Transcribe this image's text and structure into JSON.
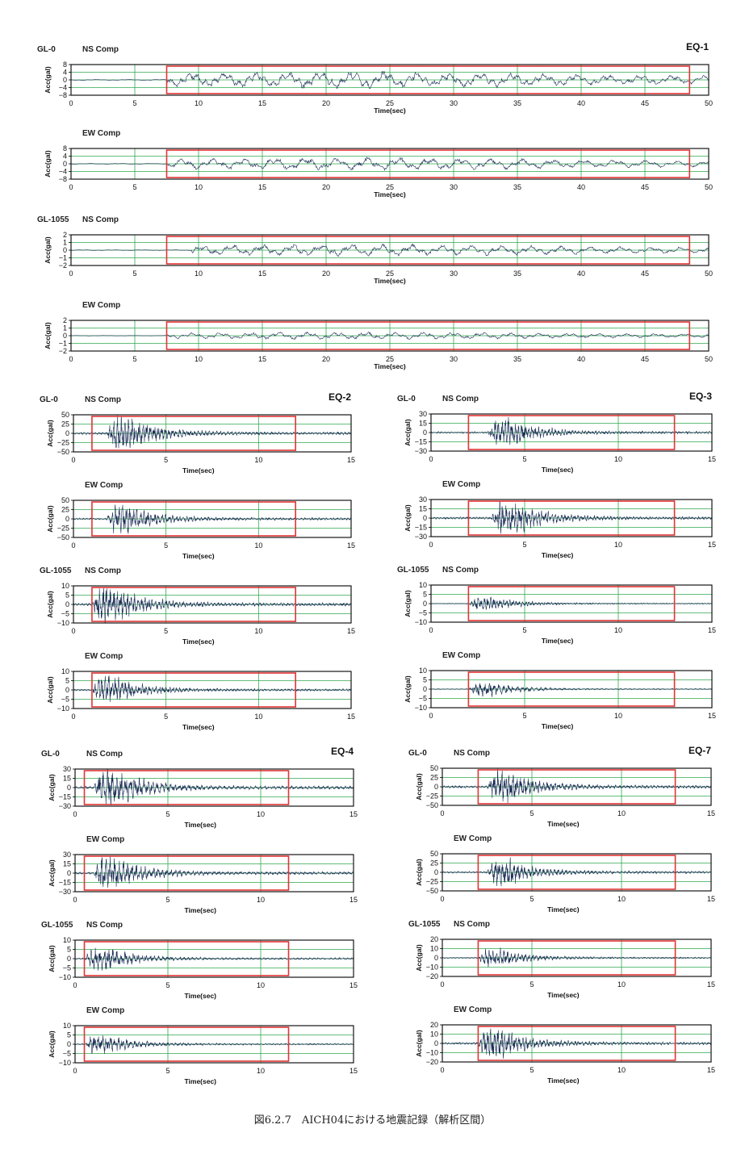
{
  "caption": "図6.2.7　AICH04における地震記録（解析区間）",
  "colors": {
    "grid": "#2fa84f",
    "trace": "#1b2e55",
    "window": "#e03535",
    "frame": "#000000"
  },
  "chart_data": [
    {
      "type": "line",
      "event": "EQ-1",
      "location": "GL-0",
      "component": "NS Comp",
      "xlabel": "Time(sec)",
      "ylabel": "Acc(gal)",
      "xlim": [
        0,
        50
      ],
      "xticks": [
        0,
        5,
        10,
        15,
        20,
        25,
        30,
        35,
        40,
        45,
        50
      ],
      "ylim": [
        -8,
        8
      ],
      "yticks": [
        -8,
        -4,
        0,
        4,
        8
      ],
      "ytick_labels": [
        "−8",
        "−4",
        "0",
        "4",
        "8"
      ],
      "analysis_window": [
        7.5,
        48.5
      ],
      "peak_abs": 4.6,
      "onset": 7.5,
      "amp_character": "longperiod"
    },
    {
      "type": "line",
      "component": "EW Comp",
      "xlabel": "Time(sec)",
      "ylabel": "Acc(gal)",
      "xlim": [
        0,
        50
      ],
      "xticks": [
        0,
        5,
        10,
        15,
        20,
        25,
        30,
        35,
        40,
        45,
        50
      ],
      "ylim": [
        -8,
        8
      ],
      "yticks": [
        -8,
        -4,
        0,
        4,
        8
      ],
      "ytick_labels": [
        "−8",
        "−4",
        "0",
        "4",
        "8"
      ],
      "analysis_window": [
        7.5,
        48.5
      ],
      "peak_abs": 3.5,
      "onset": 7.5,
      "amp_character": "longperiod"
    },
    {
      "type": "line",
      "location": "GL-1055",
      "component": "NS Comp",
      "xlabel": "Time(sec)",
      "ylabel": "Acc(gal)",
      "xlim": [
        0,
        50
      ],
      "xticks": [
        0,
        5,
        10,
        15,
        20,
        25,
        30,
        35,
        40,
        45,
        50
      ],
      "ylim": [
        -2,
        2
      ],
      "yticks": [
        -2,
        -1,
        0,
        1,
        2
      ],
      "ytick_labels": [
        "−2",
        "−1",
        "0",
        "1",
        "2"
      ],
      "analysis_window": [
        7.5,
        48.5
      ],
      "peak_abs": 0.8,
      "onset": 9.5,
      "amp_character": "longperiod"
    },
    {
      "type": "line",
      "component": "EW Comp",
      "xlabel": "Time(sec)",
      "ylabel": "Acc(gal)",
      "xlim": [
        0,
        50
      ],
      "xticks": [
        0,
        5,
        10,
        15,
        20,
        25,
        30,
        35,
        40,
        45,
        50
      ],
      "ylim": [
        -2,
        2
      ],
      "yticks": [
        -2,
        -1,
        0,
        1,
        2
      ],
      "ytick_labels": [
        "−2",
        "−1",
        "0",
        "1",
        "2"
      ],
      "analysis_window": [
        7.5,
        48.5
      ],
      "peak_abs": 0.5,
      "onset": 7.5,
      "amp_character": "longperiod"
    },
    {
      "type": "line",
      "event": "EQ-2",
      "location": "GL-0",
      "component": "NS Comp",
      "xlabel": "Time(sec)",
      "ylabel": "Acc(gal)",
      "xlim": [
        0,
        15
      ],
      "xticks": [
        0,
        5,
        10,
        15
      ],
      "ylim": [
        -50,
        50
      ],
      "yticks": [
        -50,
        -25,
        0,
        25,
        50
      ],
      "ytick_labels": [
        "−50",
        "−25",
        "0",
        "25",
        "50"
      ],
      "analysis_window": [
        1.0,
        12.0
      ],
      "peak_abs": 38,
      "onset": 1.8,
      "amp_character": "burst"
    },
    {
      "type": "line",
      "component": "EW Comp",
      "xlabel": "Time(sec)",
      "ylabel": "Acc(gal)",
      "xlim": [
        0,
        15
      ],
      "xticks": [
        0,
        5,
        10,
        15
      ],
      "ylim": [
        -50,
        50
      ],
      "yticks": [
        -50,
        -25,
        0,
        25,
        50
      ],
      "ytick_labels": [
        "−50",
        "−25",
        "0",
        "25",
        "50"
      ],
      "analysis_window": [
        1.0,
        12.0
      ],
      "peak_abs": 30,
      "onset": 1.8,
      "amp_character": "burst"
    },
    {
      "type": "line",
      "location": "GL-1055",
      "component": "NS Comp",
      "xlabel": "Time(sec)",
      "ylabel": "Acc(gal)",
      "xlim": [
        0,
        15
      ],
      "xticks": [
        0,
        5,
        10,
        15
      ],
      "ylim": [
        -10,
        10
      ],
      "yticks": [
        -10,
        -5,
        0,
        5,
        10
      ],
      "ytick_labels": [
        "−10",
        "−5",
        "0",
        "5",
        "10"
      ],
      "analysis_window": [
        1.0,
        12.0
      ],
      "peak_abs": 8,
      "onset": 1.0,
      "amp_character": "burst"
    },
    {
      "type": "line",
      "component": "EW Comp",
      "xlabel": "Time(sec)",
      "ylabel": "Acc(gal)",
      "xlim": [
        0,
        15
      ],
      "xticks": [
        0,
        5,
        10,
        15
      ],
      "ylim": [
        -10,
        10
      ],
      "yticks": [
        -10,
        -5,
        0,
        5,
        10
      ],
      "ytick_labels": [
        "−10",
        "−5",
        "0",
        "5",
        "10"
      ],
      "analysis_window": [
        1.0,
        12.0
      ],
      "peak_abs": 6,
      "onset": 1.0,
      "amp_character": "burst"
    },
    {
      "type": "line",
      "event": "EQ-3",
      "location": "GL-0",
      "component": "NS Comp",
      "xlabel": "Time(sec)",
      "ylabel": "Acc(gal)",
      "xlim": [
        0,
        15
      ],
      "xticks": [
        0,
        5,
        10,
        15
      ],
      "ylim": [
        -30,
        30
      ],
      "yticks": [
        -30,
        -15,
        0,
        15,
        30
      ],
      "ytick_labels": [
        "−30",
        "−15",
        "0",
        "15",
        "30"
      ],
      "analysis_window": [
        2.0,
        13.0
      ],
      "peak_abs": 18,
      "onset": 3.0,
      "amp_character": "burst"
    },
    {
      "type": "line",
      "component": "EW Comp",
      "xlabel": "Time(sec)",
      "ylabel": "Acc(gal)",
      "xlim": [
        0,
        15
      ],
      "xticks": [
        0,
        5,
        10,
        15
      ],
      "ylim": [
        -30,
        30
      ],
      "yticks": [
        -30,
        -15,
        0,
        15,
        30
      ],
      "ytick_labels": [
        "−30",
        "−15",
        "0",
        "15",
        "30"
      ],
      "analysis_window": [
        2.0,
        13.0
      ],
      "peak_abs": 22,
      "onset": 3.2,
      "amp_character": "burst"
    },
    {
      "type": "line",
      "location": "GL-1055",
      "component": "NS Comp",
      "xlabel": "Time(sec)",
      "ylabel": "Acc(gal)",
      "xlim": [
        0,
        15
      ],
      "xticks": [
        0,
        5,
        10,
        15
      ],
      "ylim": [
        -10,
        10
      ],
      "yticks": [
        -10,
        -5,
        0,
        5,
        10
      ],
      "ytick_labels": [
        "−10",
        "−5",
        "0",
        "5",
        "10"
      ],
      "analysis_window": [
        2.0,
        13.0
      ],
      "peak_abs": 3,
      "onset": 2.0,
      "amp_character": "burst"
    },
    {
      "type": "line",
      "component": "EW Comp",
      "xlabel": "Time(sec)",
      "ylabel": "Acc(gal)",
      "xlim": [
        0,
        15
      ],
      "xticks": [
        0,
        5,
        10,
        15
      ],
      "ylim": [
        -10,
        10
      ],
      "yticks": [
        -10,
        -5,
        0,
        5,
        10
      ],
      "ytick_labels": [
        "−10",
        "−5",
        "0",
        "5",
        "10"
      ],
      "analysis_window": [
        2.0,
        13.0
      ],
      "peak_abs": 3,
      "onset": 2.0,
      "amp_character": "burst"
    },
    {
      "type": "line",
      "event": "EQ-4",
      "location": "GL-0",
      "component": "NS Comp",
      "xlabel": "Time(sec)",
      "ylabel": "Acc(gal)",
      "xlim": [
        0,
        15
      ],
      "xticks": [
        0,
        5,
        10,
        15
      ],
      "ylim": [
        -30,
        30
      ],
      "yticks": [
        -30,
        -15,
        0,
        15,
        30
      ],
      "ytick_labels": [
        "−30",
        "−15",
        "0",
        "15",
        "30"
      ],
      "analysis_window": [
        0.5,
        11.5
      ],
      "peak_abs": 25,
      "onset": 1.0,
      "amp_character": "burst"
    },
    {
      "type": "line",
      "component": "EW Comp",
      "xlabel": "Time(sec)",
      "ylabel": "Acc(gal)",
      "xlim": [
        0,
        15
      ],
      "xticks": [
        0,
        5,
        10,
        15
      ],
      "ylim": [
        -30,
        30
      ],
      "yticks": [
        -30,
        -15,
        0,
        15,
        30
      ],
      "ytick_labels": [
        "−30",
        "−15",
        "0",
        "15",
        "30"
      ],
      "analysis_window": [
        0.5,
        11.5
      ],
      "peak_abs": 22,
      "onset": 1.0,
      "amp_character": "burst"
    },
    {
      "type": "line",
      "location": "GL-1055",
      "component": "NS Comp",
      "xlabel": "Time(sec)",
      "ylabel": "Acc(gal)",
      "xlim": [
        0,
        15
      ],
      "xticks": [
        0,
        5,
        10,
        15
      ],
      "ylim": [
        -10,
        10
      ],
      "yticks": [
        -10,
        -5,
        0,
        5,
        10
      ],
      "ytick_labels": [
        "−10",
        "−5",
        "0",
        "5",
        "10"
      ],
      "analysis_window": [
        0.5,
        11.5
      ],
      "peak_abs": 5,
      "onset": 0.5,
      "amp_character": "burst"
    },
    {
      "type": "line",
      "component": "EW Comp",
      "xlabel": "Time(sec)",
      "ylabel": "Acc(gal)",
      "xlim": [
        0,
        15
      ],
      "xticks": [
        0,
        5,
        10,
        15
      ],
      "ylim": [
        -10,
        10
      ],
      "yticks": [
        -10,
        -5,
        0,
        5,
        10
      ],
      "ytick_labels": [
        "−10",
        "−5",
        "0",
        "5",
        "10"
      ],
      "analysis_window": [
        0.5,
        11.5
      ],
      "peak_abs": 4,
      "onset": 0.5,
      "amp_character": "burst"
    },
    {
      "type": "line",
      "event": "EQ-7",
      "location": "GL-0",
      "component": "NS Comp",
      "xlabel": "Time(sec)",
      "ylabel": "Acc(gal)",
      "xlim": [
        0,
        15
      ],
      "xticks": [
        0,
        5,
        10,
        15
      ],
      "ylim": [
        -50,
        50
      ],
      "yticks": [
        -50,
        -25,
        0,
        25,
        50
      ],
      "ytick_labels": [
        "−50",
        "−25",
        "0",
        "25",
        "50"
      ],
      "analysis_window": [
        2.0,
        13.0
      ],
      "peak_abs": 38,
      "onset": 2.5,
      "amp_character": "burst"
    },
    {
      "type": "line",
      "component": "EW Comp",
      "xlabel": "Time(sec)",
      "ylabel": "Acc(gal)",
      "xlim": [
        0,
        15
      ],
      "xticks": [
        0,
        5,
        10,
        15
      ],
      "ylim": [
        -50,
        50
      ],
      "yticks": [
        -50,
        -25,
        0,
        25,
        50
      ],
      "ytick_labels": [
        "−50",
        "−25",
        "0",
        "25",
        "50"
      ],
      "analysis_window": [
        2.0,
        13.0
      ],
      "peak_abs": 30,
      "onset": 2.5,
      "amp_character": "burst"
    },
    {
      "type": "line",
      "location": "GL-1055",
      "component": "NS Comp",
      "xlabel": "Time(sec)",
      "ylabel": "Acc(gal)",
      "xlim": [
        0,
        15
      ],
      "xticks": [
        0,
        5,
        10,
        15
      ],
      "ylim": [
        -20,
        20
      ],
      "yticks": [
        -20,
        -10,
        0,
        10,
        20
      ],
      "ytick_labels": [
        "−20",
        "−10",
        "0",
        "10",
        "20"
      ],
      "analysis_window": [
        2.0,
        13.0
      ],
      "peak_abs": 8,
      "onset": 2.0,
      "amp_character": "burst"
    },
    {
      "type": "line",
      "component": "EW Comp",
      "xlabel": "Time(sec)",
      "ylabel": "Acc(gal)",
      "xlim": [
        0,
        15
      ],
      "xticks": [
        0,
        5,
        10,
        15
      ],
      "ylim": [
        -20,
        20
      ],
      "yticks": [
        -20,
        -10,
        0,
        10,
        20
      ],
      "ytick_labels": [
        "−20",
        "−10",
        "0",
        "10",
        "20"
      ],
      "analysis_window": [
        2.0,
        13.0
      ],
      "peak_abs": 14,
      "onset": 2.0,
      "amp_character": "burst"
    }
  ]
}
